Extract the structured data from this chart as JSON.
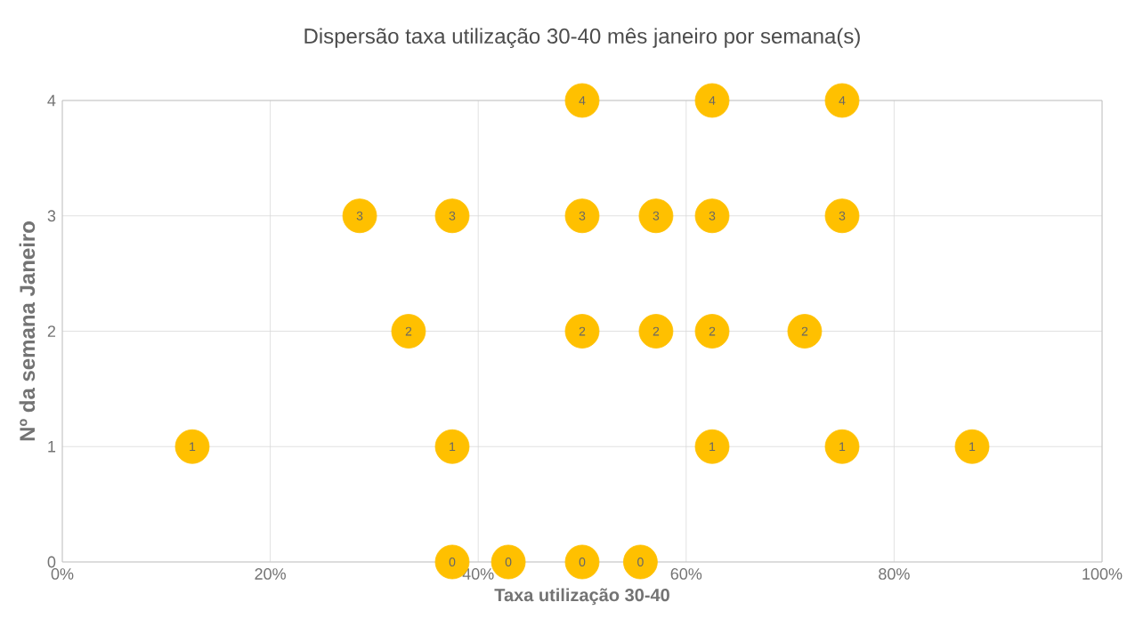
{
  "chart_data": {
    "type": "scatter",
    "title": "Dispersão taxa utilização 30-40 mês janeiro por semana(s)",
    "xlabel": "Taxa utilização 30-40",
    "ylabel": "Nº da semana Janeiro",
    "x": [
      50,
      62.5,
      75,
      28.6,
      37.5,
      50,
      57.1,
      62.5,
      75,
      33.3,
      50,
      57.1,
      62.5,
      71.4,
      12.5,
      37.5,
      62.5,
      75,
      87.5,
      37.5,
      42.9,
      50,
      55.6
    ],
    "values": [
      4,
      4,
      4,
      3,
      3,
      3,
      3,
      3,
      3,
      2,
      2,
      2,
      2,
      2,
      1,
      1,
      1,
      1,
      1,
      0,
      0,
      0,
      0
    ],
    "color": "#ffc000",
    "marker": "circle",
    "data_labels": true,
    "grid": true,
    "xlim": [
      0,
      100
    ],
    "ylim": [
      0,
      4
    ],
    "xticks": [
      {
        "value": 0,
        "label": "0%"
      },
      {
        "value": 20,
        "label": "20%"
      },
      {
        "value": 40,
        "label": "40%"
      },
      {
        "value": 60,
        "label": "60%"
      },
      {
        "value": 80,
        "label": "80%"
      },
      {
        "value": 100,
        "label": "100%"
      }
    ],
    "yticks": [
      0,
      1,
      2,
      3,
      4
    ]
  }
}
